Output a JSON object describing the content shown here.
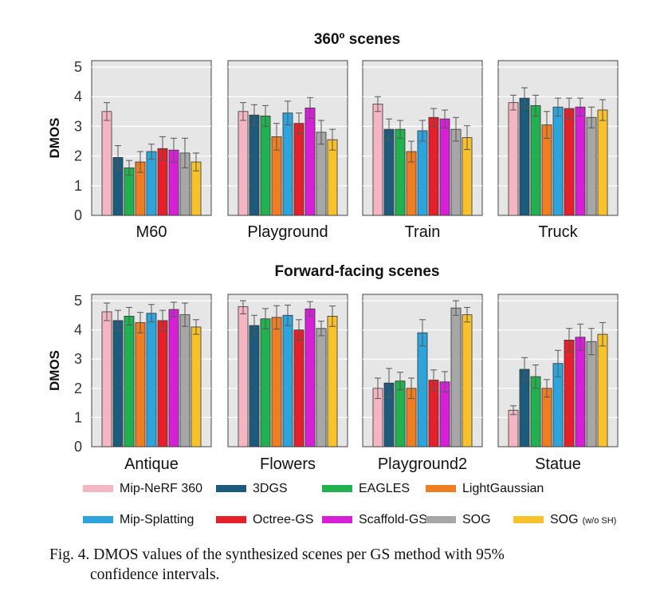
{
  "figure": {
    "caption_line1": "Fig. 4.   DMOS values of the synthesized scenes per GS method with 95%",
    "caption_line2": "confidence intervals."
  },
  "chart_data": {
    "type": "bar",
    "ylabel": "DMOS",
    "ylim": [
      0,
      5
    ],
    "yticks": [
      "0",
      "1",
      "2",
      "3",
      "4",
      "5"
    ],
    "grid": true,
    "legend_placement": "bottom",
    "series": [
      {
        "name": "Mip-NeRF 360",
        "color": "#f4b6c2"
      },
      {
        "name": "3DGS",
        "color": "#1d5b7c"
      },
      {
        "name": "EAGLES",
        "color": "#20b24f"
      },
      {
        "name": "LightGaussian",
        "color": "#ef7d22"
      },
      {
        "name": "Mip-Splatting",
        "color": "#2ea4dc"
      },
      {
        "name": "Octree-GS",
        "color": "#e5202b"
      },
      {
        "name": "Scaffold-GS",
        "color": "#d71fd8"
      },
      {
        "name": "SOG",
        "color": "#a7a7a7"
      },
      {
        "name": "SOG",
        "name_suffix": "(w/o SH)",
        "color": "#f7c22b"
      }
    ],
    "groups": [
      {
        "title": "360º scenes",
        "panels": [
          {
            "label": "M60",
            "values": [
              3.5,
              1.95,
              1.6,
              1.8,
              2.15,
              2.25,
              2.2,
              2.1,
              1.8
            ],
            "ci": [
              0.3,
              0.4,
              0.25,
              0.35,
              0.25,
              0.4,
              0.4,
              0.5,
              0.3
            ]
          },
          {
            "label": "Playground",
            "values": [
              3.5,
              3.38,
              3.35,
              2.65,
              3.45,
              3.1,
              3.62,
              2.8,
              2.55
            ],
            "ci": [
              0.3,
              0.35,
              0.35,
              0.45,
              0.4,
              0.35,
              0.35,
              0.4,
              0.35
            ]
          },
          {
            "label": "Train",
            "values": [
              3.75,
              2.9,
              2.9,
              2.15,
              2.85,
              3.3,
              3.25,
              2.9,
              2.62
            ],
            "ci": [
              0.25,
              0.35,
              0.3,
              0.35,
              0.35,
              0.3,
              0.3,
              0.4,
              0.4
            ]
          },
          {
            "label": "Truck",
            "values": [
              3.8,
              3.95,
              3.7,
              3.05,
              3.65,
              3.6,
              3.65,
              3.3,
              3.55
            ],
            "ci": [
              0.25,
              0.35,
              0.35,
              0.45,
              0.3,
              0.35,
              0.3,
              0.35,
              0.35
            ]
          }
        ]
      },
      {
        "title": "Forward-facing scenes",
        "panels": [
          {
            "label": "Antique",
            "values": [
              4.62,
              4.32,
              4.47,
              4.25,
              4.57,
              4.32,
              4.7,
              4.52,
              4.1
            ],
            "ci": [
              0.3,
              0.35,
              0.3,
              0.35,
              0.3,
              0.35,
              0.25,
              0.4,
              0.25
            ]
          },
          {
            "label": "Flowers",
            "values": [
              4.8,
              4.15,
              4.38,
              4.43,
              4.5,
              4.0,
              4.72,
              4.05,
              4.47
            ],
            "ci": [
              0.25,
              0.35,
              0.35,
              0.4,
              0.35,
              0.35,
              0.25,
              0.25,
              0.35
            ]
          },
          {
            "label": "Playground2",
            "values": [
              2.0,
              2.18,
              2.25,
              2.0,
              3.9,
              2.28,
              2.22,
              4.75,
              4.52
            ],
            "ci": [
              0.35,
              0.5,
              0.3,
              0.35,
              0.45,
              0.35,
              0.35,
              0.25,
              0.25
            ]
          },
          {
            "label": "Statue",
            "values": [
              1.25,
              2.65,
              2.4,
              2.0,
              2.85,
              3.65,
              3.75,
              3.6,
              3.85
            ],
            "ci": [
              0.15,
              0.4,
              0.4,
              0.3,
              0.45,
              0.4,
              0.45,
              0.45,
              0.4
            ]
          }
        ]
      }
    ]
  }
}
